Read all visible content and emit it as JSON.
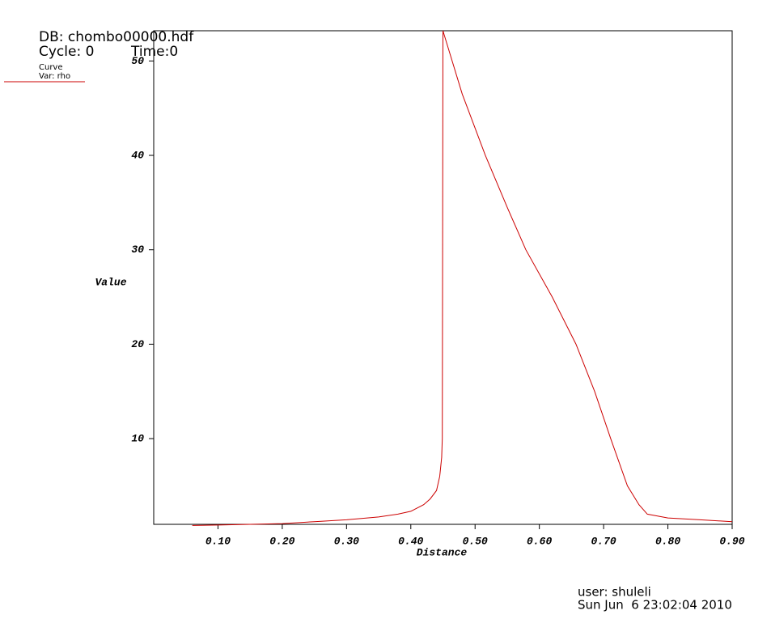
{
  "header": {
    "db": "DB: chombo00000.hdf",
    "cycle": "Cycle: 0",
    "time": "Time:0"
  },
  "footer": {
    "user": "user: shuleli",
    "date": "Sun Jun  6 23:02:04 2010"
  },
  "chart_data": {
    "type": "line",
    "xlabel": "Distance",
    "ylabel": "Value",
    "legend_title": "Curve",
    "x": [
      0.06,
      0.1,
      0.15,
      0.2,
      0.25,
      0.3,
      0.35,
      0.38,
      0.4,
      0.42,
      0.43,
      0.44,
      0.445,
      0.448,
      0.449,
      0.4495,
      0.45,
      0.48,
      0.516,
      0.55,
      0.579,
      0.62,
      0.657,
      0.686,
      0.711,
      0.737,
      0.755,
      0.768,
      0.8,
      0.85,
      0.9
    ],
    "series": [
      {
        "name": "Var: rho",
        "color": "#cc0000",
        "values": [
          0.8,
          0.85,
          0.92,
          1.0,
          1.2,
          1.4,
          1.7,
          2.0,
          2.3,
          3.0,
          3.6,
          4.5,
          6,
          8,
          10,
          30,
          53.2,
          46.5,
          40,
          34.5,
          30,
          25,
          20,
          15,
          10,
          5,
          3,
          2,
          1.6,
          1.4,
          1.2
        ]
      }
    ],
    "xlim": [
      0,
      0.9
    ],
    "ylim": [
      0.92,
      53.2
    ],
    "xticks": [
      {
        "value": 0.1,
        "label": "0.10"
      },
      {
        "value": 0.2,
        "label": "0.20"
      },
      {
        "value": 0.3,
        "label": "0.30"
      },
      {
        "value": 0.4,
        "label": "0.40"
      },
      {
        "value": 0.5,
        "label": "0.50"
      },
      {
        "value": 0.6,
        "label": "0.60"
      },
      {
        "value": 0.7,
        "label": "0.70"
      },
      {
        "value": 0.8,
        "label": "0.80"
      },
      {
        "value": 0.9,
        "label": "0.90"
      }
    ],
    "yticks": [
      10,
      20,
      30,
      40,
      50
    ]
  }
}
